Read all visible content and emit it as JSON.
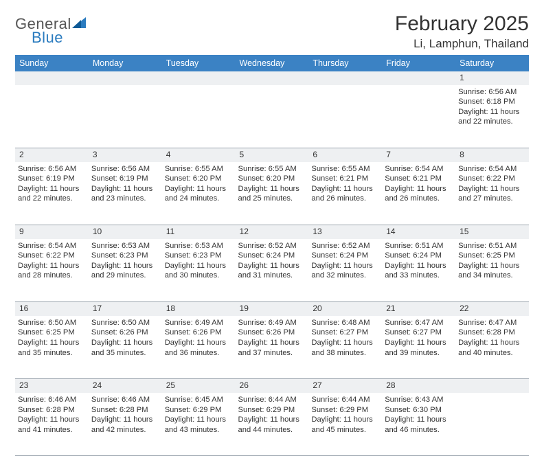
{
  "logo": {
    "general": "General",
    "blue": "Blue"
  },
  "title": "February 2025",
  "location": "Li, Lamphun, Thailand",
  "colors": {
    "header_bg": "#3b82c4",
    "header_text": "#ffffff",
    "daynum_bg": "#eef0f2",
    "border": "#9aa4ad",
    "text": "#333333",
    "logo_blue": "#2a7bbf",
    "logo_gray": "#555555",
    "page_bg": "#ffffff"
  },
  "typography": {
    "title_fontsize": 30,
    "location_fontsize": 17,
    "header_fontsize": 12.5,
    "cell_fontsize": 11.2,
    "daynum_fontsize": 12
  },
  "weekdays": [
    "Sunday",
    "Monday",
    "Tuesday",
    "Wednesday",
    "Thursday",
    "Friday",
    "Saturday"
  ],
  "weeks": [
    [
      null,
      null,
      null,
      null,
      null,
      null,
      {
        "n": "1",
        "sr": "Sunrise: 6:56 AM",
        "ss": "Sunset: 6:18 PM",
        "dl": "Daylight: 11 hours and 22 minutes."
      }
    ],
    [
      {
        "n": "2",
        "sr": "Sunrise: 6:56 AM",
        "ss": "Sunset: 6:19 PM",
        "dl": "Daylight: 11 hours and 22 minutes."
      },
      {
        "n": "3",
        "sr": "Sunrise: 6:56 AM",
        "ss": "Sunset: 6:19 PM",
        "dl": "Daylight: 11 hours and 23 minutes."
      },
      {
        "n": "4",
        "sr": "Sunrise: 6:55 AM",
        "ss": "Sunset: 6:20 PM",
        "dl": "Daylight: 11 hours and 24 minutes."
      },
      {
        "n": "5",
        "sr": "Sunrise: 6:55 AM",
        "ss": "Sunset: 6:20 PM",
        "dl": "Daylight: 11 hours and 25 minutes."
      },
      {
        "n": "6",
        "sr": "Sunrise: 6:55 AM",
        "ss": "Sunset: 6:21 PM",
        "dl": "Daylight: 11 hours and 26 minutes."
      },
      {
        "n": "7",
        "sr": "Sunrise: 6:54 AM",
        "ss": "Sunset: 6:21 PM",
        "dl": "Daylight: 11 hours and 26 minutes."
      },
      {
        "n": "8",
        "sr": "Sunrise: 6:54 AM",
        "ss": "Sunset: 6:22 PM",
        "dl": "Daylight: 11 hours and 27 minutes."
      }
    ],
    [
      {
        "n": "9",
        "sr": "Sunrise: 6:54 AM",
        "ss": "Sunset: 6:22 PM",
        "dl": "Daylight: 11 hours and 28 minutes."
      },
      {
        "n": "10",
        "sr": "Sunrise: 6:53 AM",
        "ss": "Sunset: 6:23 PM",
        "dl": "Daylight: 11 hours and 29 minutes."
      },
      {
        "n": "11",
        "sr": "Sunrise: 6:53 AM",
        "ss": "Sunset: 6:23 PM",
        "dl": "Daylight: 11 hours and 30 minutes."
      },
      {
        "n": "12",
        "sr": "Sunrise: 6:52 AM",
        "ss": "Sunset: 6:24 PM",
        "dl": "Daylight: 11 hours and 31 minutes."
      },
      {
        "n": "13",
        "sr": "Sunrise: 6:52 AM",
        "ss": "Sunset: 6:24 PM",
        "dl": "Daylight: 11 hours and 32 minutes."
      },
      {
        "n": "14",
        "sr": "Sunrise: 6:51 AM",
        "ss": "Sunset: 6:24 PM",
        "dl": "Daylight: 11 hours and 33 minutes."
      },
      {
        "n": "15",
        "sr": "Sunrise: 6:51 AM",
        "ss": "Sunset: 6:25 PM",
        "dl": "Daylight: 11 hours and 34 minutes."
      }
    ],
    [
      {
        "n": "16",
        "sr": "Sunrise: 6:50 AM",
        "ss": "Sunset: 6:25 PM",
        "dl": "Daylight: 11 hours and 35 minutes."
      },
      {
        "n": "17",
        "sr": "Sunrise: 6:50 AM",
        "ss": "Sunset: 6:26 PM",
        "dl": "Daylight: 11 hours and 35 minutes."
      },
      {
        "n": "18",
        "sr": "Sunrise: 6:49 AM",
        "ss": "Sunset: 6:26 PM",
        "dl": "Daylight: 11 hours and 36 minutes."
      },
      {
        "n": "19",
        "sr": "Sunrise: 6:49 AM",
        "ss": "Sunset: 6:26 PM",
        "dl": "Daylight: 11 hours and 37 minutes."
      },
      {
        "n": "20",
        "sr": "Sunrise: 6:48 AM",
        "ss": "Sunset: 6:27 PM",
        "dl": "Daylight: 11 hours and 38 minutes."
      },
      {
        "n": "21",
        "sr": "Sunrise: 6:47 AM",
        "ss": "Sunset: 6:27 PM",
        "dl": "Daylight: 11 hours and 39 minutes."
      },
      {
        "n": "22",
        "sr": "Sunrise: 6:47 AM",
        "ss": "Sunset: 6:28 PM",
        "dl": "Daylight: 11 hours and 40 minutes."
      }
    ],
    [
      {
        "n": "23",
        "sr": "Sunrise: 6:46 AM",
        "ss": "Sunset: 6:28 PM",
        "dl": "Daylight: 11 hours and 41 minutes."
      },
      {
        "n": "24",
        "sr": "Sunrise: 6:46 AM",
        "ss": "Sunset: 6:28 PM",
        "dl": "Daylight: 11 hours and 42 minutes."
      },
      {
        "n": "25",
        "sr": "Sunrise: 6:45 AM",
        "ss": "Sunset: 6:29 PM",
        "dl": "Daylight: 11 hours and 43 minutes."
      },
      {
        "n": "26",
        "sr": "Sunrise: 6:44 AM",
        "ss": "Sunset: 6:29 PM",
        "dl": "Daylight: 11 hours and 44 minutes."
      },
      {
        "n": "27",
        "sr": "Sunrise: 6:44 AM",
        "ss": "Sunset: 6:29 PM",
        "dl": "Daylight: 11 hours and 45 minutes."
      },
      {
        "n": "28",
        "sr": "Sunrise: 6:43 AM",
        "ss": "Sunset: 6:30 PM",
        "dl": "Daylight: 11 hours and 46 minutes."
      },
      null
    ]
  ]
}
